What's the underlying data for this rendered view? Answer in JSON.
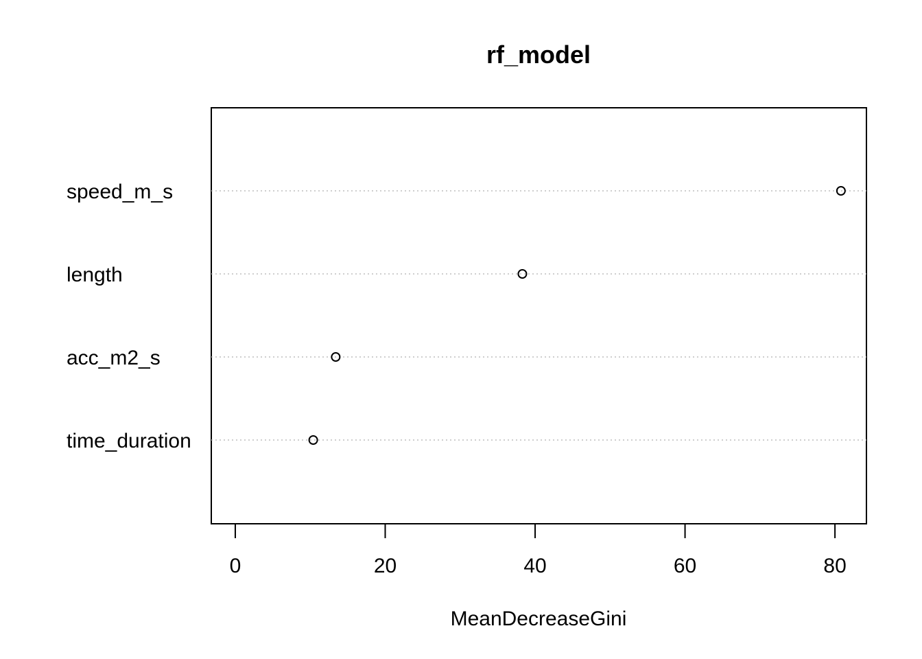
{
  "chart_data": {
    "type": "scatter",
    "title": "rf_model",
    "xlabel": "MeanDecreaseGini",
    "ylabel": "",
    "xlim": [
      -3.2,
      84.2
    ],
    "xticks": [
      0,
      20,
      40,
      60,
      80
    ],
    "xtick_labels": [
      "0",
      "20",
      "40",
      "60",
      "80"
    ],
    "categories": [
      "speed_m_s",
      "length",
      "acc_m2_s",
      "time_duration"
    ],
    "values": [
      80.8,
      38.3,
      13.4,
      10.4
    ],
    "grid": "horizontal dotted guides per category",
    "legend": "none",
    "colors": {
      "point_stroke": "#000000",
      "guide_line": "#bebebe",
      "axis": "#000000"
    }
  }
}
